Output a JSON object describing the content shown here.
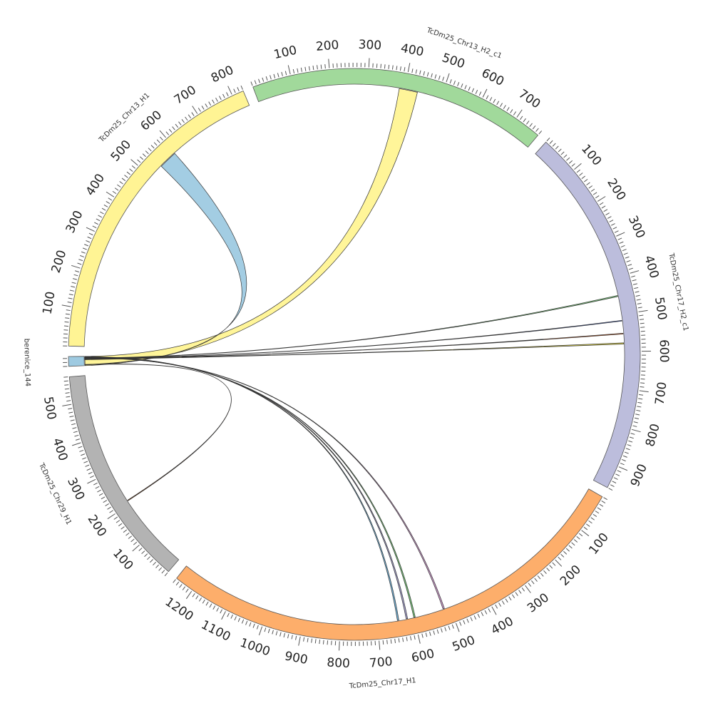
{
  "chart_data": {
    "type": "circos",
    "segments": [
      {
        "name": "berenice_144",
        "length": 25,
        "color": "#9ecae1",
        "major_ticks": []
      },
      {
        "name": "TcDm25_Chr13_H1",
        "length": 830,
        "color": "#fff494",
        "major_ticks": [
          100,
          200,
          300,
          400,
          500,
          600,
          700,
          800
        ]
      },
      {
        "name": "TcDm25_Chr13_H2_c1",
        "length": 770,
        "color": "#a1d99b",
        "major_ticks": [
          100,
          200,
          300,
          400,
          500,
          600,
          700
        ]
      },
      {
        "name": "TcDm25_Chr17_H2_c1",
        "length": 960,
        "color": "#bcbddc",
        "major_ticks": [
          100,
          200,
          300,
          400,
          500,
          600,
          700,
          800,
          900
        ]
      },
      {
        "name": "TcDm25_Chr17_H1",
        "length": 1250,
        "color": "#fdae6b",
        "major_ticks": [
          100,
          200,
          300,
          400,
          500,
          600,
          700,
          800,
          900,
          1000,
          1100,
          1200
        ]
      },
      {
        "name": "TcDm25_Chr29_H1",
        "length": 570,
        "color": "#b3b3b3",
        "major_ticks": [
          100,
          200,
          300,
          400,
          500
        ]
      }
    ],
    "links": [
      {
        "from": "berenice_144",
        "from_range": [
          0,
          25
        ],
        "to": "TcDm25_Chr13_H2_c1",
        "to_range": [
          385,
          435
        ],
        "color": "#fff494"
      },
      {
        "from": "TcDm25_Chr13_H1",
        "from_range": [
          540,
          590
        ],
        "to": "berenice_144",
        "to_range": [
          2,
          3
        ],
        "color": "#9ecae1"
      },
      {
        "from": "berenice_144",
        "from_range": [
          2,
          3
        ],
        "to": "TcDm25_Chr29_H1",
        "to_range": [
          210,
          212
        ],
        "color": "#8b3a00"
      },
      {
        "from": "berenice_144",
        "from_range": [
          23,
          24
        ],
        "to": "TcDm25_Chr17_H1",
        "to_range": [
          642,
          646
        ],
        "color": "#6baed6"
      },
      {
        "from": "berenice_144",
        "from_range": [
          22,
          23
        ],
        "to": "TcDm25_Chr17_H1",
        "to_range": [
          618,
          622
        ],
        "color": "#9e9ac8"
      },
      {
        "from": "berenice_144",
        "from_range": [
          21,
          22
        ],
        "to": "TcDm25_Chr17_H1",
        "to_range": [
          597,
          601
        ],
        "color": "#74c476"
      },
      {
        "from": "berenice_144",
        "from_range": [
          20,
          21
        ],
        "to": "TcDm25_Chr17_H1",
        "to_range": [
          515,
          519
        ],
        "color": "#c994c7"
      },
      {
        "from": "berenice_144",
        "from_range": [
          19,
          20
        ],
        "to": "TcDm25_Chr17_H2_c1",
        "to_range": [
          448,
          451
        ],
        "color": "#74c476"
      },
      {
        "from": "berenice_144",
        "from_range": [
          18,
          19
        ],
        "to": "TcDm25_Chr17_H2_c1",
        "to_range": [
          516,
          518
        ],
        "color": "#3f5fbf"
      },
      {
        "from": "berenice_144",
        "from_range": [
          17,
          18
        ],
        "to": "TcDm25_Chr17_H2_c1",
        "to_range": [
          551,
          553
        ],
        "color": "#e6550d"
      },
      {
        "from": "berenice_144",
        "from_range": [
          16,
          17
        ],
        "to": "TcDm25_Chr17_H2_c1",
        "to_range": [
          577,
          580
        ],
        "color": "#f0e442"
      }
    ]
  }
}
